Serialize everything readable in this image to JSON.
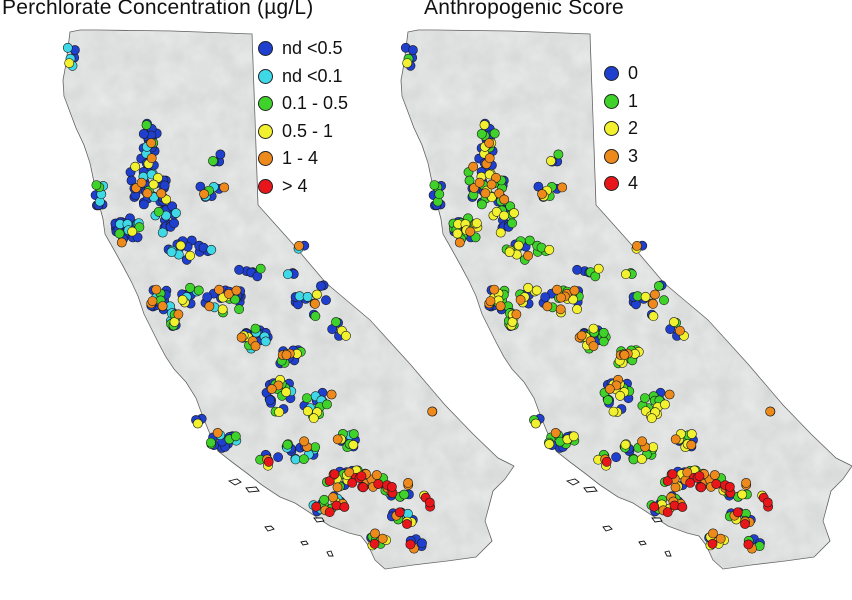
{
  "panels": [
    {
      "title": "Perchlorate Concentration (µg/L)",
      "legend": [
        {
          "label": "nd <0.5",
          "color": "#1f3fcf"
        },
        {
          "label": "nd <0.1",
          "color": "#3fd8e6"
        },
        {
          "label": "0.1 - 0.5",
          "color": "#3ed22a"
        },
        {
          "label": "0.5 - 1",
          "color": "#f1f130"
        },
        {
          "label": "1 - 4",
          "color": "#ee8a1c"
        },
        {
          "label": "> 4",
          "color": "#e8161a"
        }
      ]
    },
    {
      "title": "Anthropogenic Score",
      "legend": [
        {
          "label": "0",
          "color": "#1f3fcf"
        },
        {
          "label": "1",
          "color": "#3ed22a"
        },
        {
          "label": "2",
          "color": "#f1f130"
        },
        {
          "label": "3",
          "color": "#ee8a1c"
        },
        {
          "label": "4",
          "color": "#e8161a"
        }
      ]
    }
  ],
  "colors": {
    "land": "#e9ebea",
    "outline": "#555555",
    "marker_stroke": "#1a1a1a"
  }
}
